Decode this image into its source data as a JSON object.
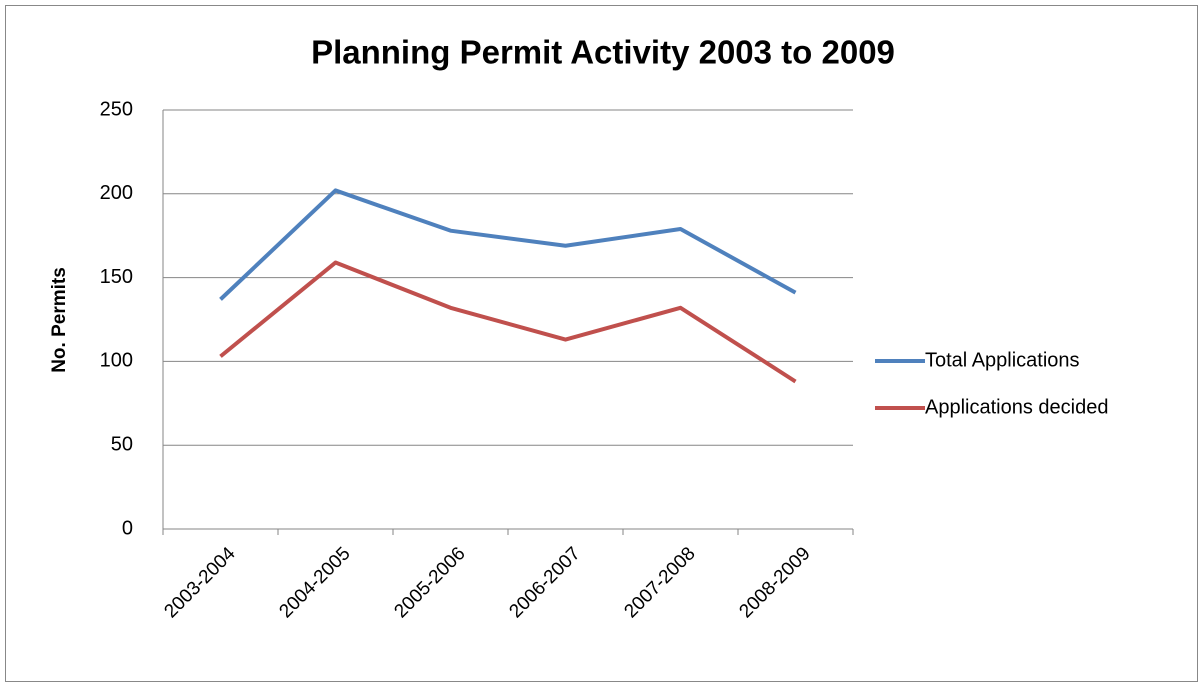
{
  "chart_data": {
    "type": "line",
    "title": "Planning Permit Activity 2003 to 2009",
    "y_label": "No. Permits",
    "categories": [
      "2003-2004",
      "2004-2005",
      "2005-2006",
      "2006-2007",
      "2007-2008",
      "2008-2009"
    ],
    "series": [
      {
        "name": "Total Applications",
        "color": "#4f81bd",
        "values": [
          137,
          202,
          178,
          169,
          179,
          141
        ]
      },
      {
        "name": "Applications decided",
        "color": "#c0504d",
        "values": [
          103,
          159,
          132,
          113,
          132,
          88
        ]
      }
    ],
    "ylim": [
      0,
      250
    ],
    "yticks": [
      0,
      50,
      100,
      150,
      200,
      250
    ],
    "grid": true,
    "legend": "right"
  }
}
